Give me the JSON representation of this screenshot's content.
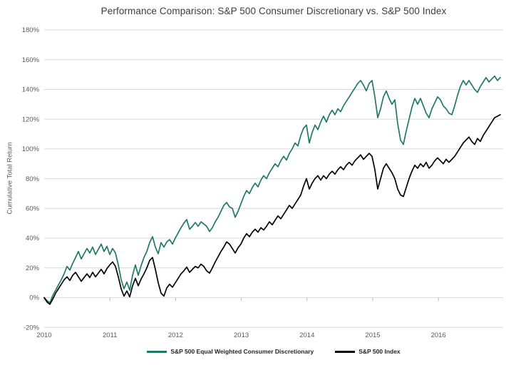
{
  "title": "Performance Comparison: S&P 500 Consumer Discretionary vs. S&P 500 Index",
  "y_axis": {
    "label": "Cumulative Total Return",
    "tick_labels": [
      "180%",
      "160%",
      "140%",
      "120%",
      "100%",
      "80%",
      "60%",
      "40%",
      "20%",
      "0%",
      "-20%"
    ]
  },
  "x_axis": {
    "tick_labels": [
      "2010",
      "2011",
      "2012",
      "2013",
      "2014",
      "2015",
      "2016"
    ]
  },
  "legend": [
    {
      "label": "S&P 500 Equal Weighted Consumer Discretionary",
      "color": "#1f7a63"
    },
    {
      "label": "S&P 500 Index",
      "color": "#000000"
    }
  ],
  "colors": {
    "background": "#ffffff",
    "grid": "#d9d9d9",
    "tick": "#bfbfbf",
    "axis_label": "#595959",
    "title": "#3d3d3d",
    "series_green": "#1f7a63",
    "series_black": "#000000"
  },
  "chart_data": {
    "type": "line",
    "title": "Performance Comparison: S&P 500 Consumer Discretionary vs. S&P 500 Index",
    "xlabel": "",
    "ylabel": "Cumulative Total Return",
    "y_unit": "percent",
    "y_range": [
      -20,
      180
    ],
    "y_tick_step": 20,
    "x_range_years": [
      2010.0,
      2016.94
    ],
    "x_tick_labels": [
      "2010",
      "2011",
      "2012",
      "2013",
      "2014",
      "2015",
      "2016"
    ],
    "grid": "horizontal",
    "legend_position": "bottom",
    "sampling": "values uniformly spaced in time from start of 2010 to late 2016",
    "series": [
      {
        "name": "S&P 500 Equal Weighted Consumer Discretionary",
        "color": "#1f7a63",
        "values": [
          0,
          -2,
          -3.5,
          1.5,
          5,
          8.5,
          12,
          16,
          21,
          18.5,
          23,
          27,
          31,
          26,
          29.5,
          33,
          30,
          34,
          29,
          32.5,
          36,
          31,
          34.5,
          29,
          33,
          30,
          22,
          12,
          6,
          10.5,
          5,
          15,
          22,
          15,
          21.5,
          27,
          31,
          37,
          41,
          34,
          29.5,
          37,
          34,
          37.5,
          39,
          36,
          40,
          43.5,
          47,
          50,
          52.5,
          46,
          48,
          50.5,
          48,
          51,
          49.5,
          48,
          44.5,
          47,
          51,
          54,
          58,
          62,
          64,
          61,
          60,
          54,
          58,
          63,
          68,
          72,
          70,
          74,
          77,
          74.5,
          79,
          82,
          80,
          84,
          87,
          90,
          88,
          92,
          95,
          92.5,
          97,
          100,
          104,
          102,
          109,
          114,
          116,
          104,
          111,
          116,
          113,
          118,
          122,
          118,
          123,
          126,
          123,
          127,
          125,
          129,
          132,
          135,
          138,
          141,
          144,
          146,
          143,
          139,
          144,
          146,
          135,
          121,
          127,
          135,
          139,
          134,
          130,
          133,
          117,
          106,
          103,
          112,
          120,
          128,
          134,
          130,
          134,
          129,
          124,
          121,
          127,
          131,
          135,
          133,
          129,
          127,
          124,
          123,
          129,
          136,
          142,
          146,
          143,
          146,
          143,
          140,
          138,
          142,
          145,
          148,
          145,
          147,
          149,
          146,
          148
        ]
      },
      {
        "name": "S&P 500 Index",
        "color": "#000000",
        "values": [
          0,
          -3,
          -4.5,
          -1,
          3,
          6,
          9,
          12,
          14,
          11.5,
          15,
          17,
          14,
          11,
          13.5,
          16,
          13.5,
          17,
          14,
          16.5,
          19,
          16,
          19.5,
          22,
          24,
          21,
          14,
          6,
          1,
          4.5,
          0.5,
          8,
          13,
          8,
          12.5,
          16,
          20,
          25,
          27,
          19,
          10,
          3,
          1,
          6.5,
          9,
          7,
          10,
          13,
          16,
          18,
          20.5,
          17,
          19,
          21,
          20,
          22.5,
          21,
          18,
          16.5,
          20,
          24,
          27.5,
          31,
          34,
          37.5,
          36,
          33,
          30,
          33.5,
          36,
          40,
          43,
          41,
          44,
          46,
          44,
          47,
          45.5,
          48,
          51,
          49,
          52,
          55,
          53,
          56,
          59,
          62,
          60,
          63,
          66,
          69,
          75,
          80,
          73,
          77,
          80,
          82,
          79,
          82,
          80,
          83,
          85,
          83,
          86,
          88,
          86,
          89,
          91,
          89,
          92,
          94,
          96,
          93,
          95,
          97,
          95,
          86,
          73,
          80,
          87,
          90,
          87,
          84,
          80,
          73,
          69,
          68,
          74,
          80,
          85,
          89,
          87,
          90,
          88,
          91,
          87,
          89,
          92,
          94,
          92,
          90,
          93,
          91,
          93,
          95,
          98,
          101,
          104,
          106,
          108,
          105,
          103,
          107,
          105,
          109,
          112,
          115,
          118,
          121,
          122,
          123
        ]
      }
    ]
  }
}
